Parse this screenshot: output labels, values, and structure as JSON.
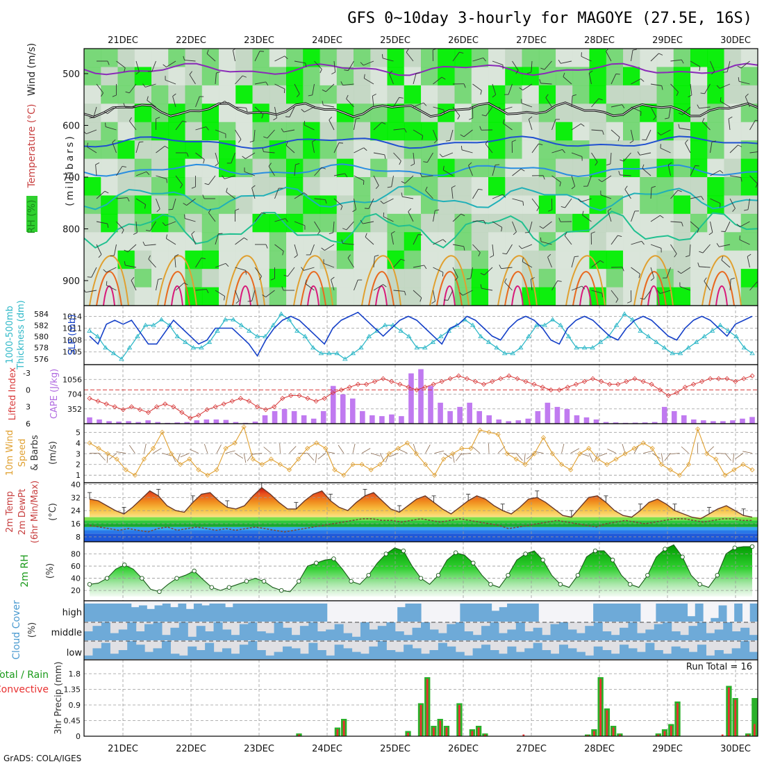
{
  "title": "GFS 0~10day 3-hourly for MAGOYE (27.5E, 16S)",
  "footer": "GrADS: COLA/IGES",
  "dates": [
    "21DEC",
    "22DEC",
    "23DEC",
    "24DEC",
    "25DEC",
    "26DEC",
    "27DEC",
    "28DEC",
    "29DEC",
    "30DEC"
  ],
  "panels": {
    "upper": {
      "y_label_main": "(millibars)",
      "y_label_legend": {
        "rh": "RH (%)",
        "temp": "Temperature (°C)",
        "wind": "Wind (m/s)"
      },
      "y_ticks": [
        500,
        600,
        700,
        800,
        900
      ]
    },
    "slp": {
      "left_label_1": "1000-500mb",
      "left_label_2": "Thickness (dm)",
      "right_label": "SLP (mb)",
      "thickness_ticks": [
        576,
        578,
        580,
        582,
        584
      ],
      "slp_ticks": [
        1005,
        1008,
        1011,
        1014
      ]
    },
    "cape": {
      "left_label": "Lifted Index",
      "right_label": "CAPE (J/kg)",
      "li_ticks": [
        -3,
        0,
        3,
        6
      ],
      "cape_ticks": [
        352,
        704,
        1056
      ]
    },
    "wind": {
      "label_1": "10m Wind",
      "label_2": "Speed",
      "label_3": "& Barbs",
      "unit": "(m/s)",
      "ticks": [
        1,
        2,
        3,
        4,
        5
      ]
    },
    "temp": {
      "label_1": "2m Temp",
      "label_2": "2m DewPt",
      "label_3": "(6hr Min/Max)",
      "unit": "(°C)",
      "ticks": [
        8,
        16,
        24,
        32,
        40
      ]
    },
    "rh": {
      "label": "2m RH",
      "unit": "(%)",
      "ticks": [
        20,
        40,
        60,
        80
      ]
    },
    "cloud": {
      "label": "Cloud Cover",
      "unit": "(%)",
      "levels": [
        "high",
        "middle",
        "low"
      ]
    },
    "precip": {
      "label_1": "Total / Rain",
      "label_2": "Convective",
      "axis_label": "3hr Precip (mm)",
      "ticks": [
        0,
        0.45,
        0.9,
        1.35,
        1.8
      ],
      "run_total": "Run Total = 16"
    }
  },
  "colors": {
    "rh_green": "#2ad12a",
    "rh_bright": "#00ff00",
    "slp_line": "#1540c8",
    "thickness_line": "#2fb8c8",
    "li_line": "#d83a3a",
    "cape_bar": "#c07af0",
    "wind_line": "#e0a030",
    "precip_total": "#2ab02a",
    "precip_conv": "#e83030",
    "cloud_blue": "#6eaad8"
  },
  "chart_data": {
    "type": "line",
    "x_step_hours": 3,
    "slp_mb": [
      1009,
      1007,
      1012,
      1013,
      1012,
      1013,
      1010,
      1007,
      1007,
      1010,
      1013,
      1011,
      1009,
      1007,
      1008,
      1011,
      1011,
      1011,
      1009,
      1007,
      1004,
      1008,
      1011,
      1013,
      1014,
      1013,
      1011,
      1009,
      1007,
      1011,
      1013,
      1014,
      1015,
      1013,
      1011,
      1009,
      1011,
      1013,
      1014,
      1013,
      1011,
      1009,
      1007,
      1011,
      1012,
      1014,
      1013,
      1011,
      1009,
      1008,
      1011,
      1013,
      1014,
      1013,
      1011,
      1008,
      1007,
      1011,
      1013,
      1014,
      1013,
      1011,
      1009,
      1008,
      1011,
      1013,
      1014,
      1013,
      1011,
      1009,
      1008,
      1011,
      1013,
      1014,
      1013,
      1011,
      1009,
      1012,
      1013,
      1014
    ],
    "thickness_dm": [
      581,
      580,
      578,
      577,
      576,
      578,
      580,
      582,
      582,
      583,
      582,
      580,
      579,
      578,
      578,
      579,
      581,
      583,
      583,
      582,
      581,
      580,
      580,
      582,
      584,
      583,
      581,
      580,
      578,
      577,
      577,
      577,
      576,
      577,
      578,
      580,
      581,
      582,
      582,
      581,
      580,
      578,
      578,
      579,
      580,
      581,
      582,
      583,
      582,
      580,
      579,
      578,
      577,
      577,
      578,
      580,
      582,
      582,
      583,
      582,
      580,
      578,
      578,
      578,
      579,
      580,
      582,
      584,
      583,
      581,
      580,
      579,
      578,
      577,
      577,
      578,
      579,
      580,
      581,
      582,
      581,
      580,
      578,
      577
    ],
    "lifted_index": [
      1.5,
      2,
      2.5,
      3,
      3.5,
      3,
      3.5,
      4,
      3,
      2.5,
      3,
      4,
      5,
      4.5,
      3.5,
      3,
      2.5,
      2,
      1.5,
      2,
      3,
      3.5,
      3,
      1.5,
      1,
      1,
      1.5,
      2,
      1.5,
      0.5,
      0,
      -0.5,
      -1,
      -1,
      -1.5,
      -2,
      -1.5,
      -1,
      -0.5,
      0,
      -0.5,
      -1,
      -1.5,
      -2,
      -2.5,
      -2,
      -1.5,
      -1,
      -1.5,
      -2,
      -2.5,
      -2,
      -1.5,
      -1,
      -0.5,
      0,
      0,
      -0.5,
      -1,
      -1.5,
      -2,
      -1.5,
      -1,
      -1,
      -1.5,
      -2,
      -1.5,
      -1,
      0,
      1,
      0.5,
      -0.5,
      -1,
      -1.5,
      -2,
      -2,
      -2,
      -1.5,
      -2,
      -2.5
    ],
    "cape_jkg": [
      150,
      100,
      60,
      50,
      60,
      40,
      80,
      40,
      20,
      30,
      40,
      80,
      100,
      100,
      90,
      40,
      20,
      50,
      200,
      300,
      350,
      300,
      200,
      120,
      300,
      900,
      700,
      600,
      300,
      200,
      180,
      220,
      180,
      1200,
      1300,
      900,
      500,
      300,
      400,
      500,
      300,
      200,
      100,
      60,
      80,
      120,
      300,
      500,
      400,
      350,
      200,
      150,
      100,
      40,
      30,
      20,
      25,
      30,
      40,
      400,
      300,
      200,
      100,
      80,
      60,
      60,
      80,
      120,
      160
    ],
    "wind_ms": [
      4,
      3.5,
      3,
      2.5,
      1.5,
      1,
      2.5,
      3.5,
      5,
      3,
      2,
      2.5,
      1.5,
      1,
      1.5,
      3.5,
      4,
      5.5,
      2.5,
      2,
      2.5,
      2,
      1.5,
      2.5,
      3.5,
      4,
      3.5,
      1.5,
      1,
      2,
      2,
      1.5,
      2,
      3,
      3.5,
      4,
      3,
      2,
      1,
      2.5,
      3,
      3.5,
      3.5,
      5.2,
      5,
      4.8,
      3,
      2.5,
      2,
      3,
      4.5,
      3,
      2,
      1.5,
      3,
      3.5,
      2.5,
      2,
      2.5,
      3,
      3.5,
      4,
      3.5,
      2,
      1.5,
      1,
      2,
      5.3,
      3,
      2.5,
      1,
      1.5,
      2,
      1.5
    ],
    "temp_c": [
      31,
      30,
      27,
      24,
      22,
      26,
      31,
      36,
      33,
      27,
      24,
      23,
      29,
      34,
      35,
      30,
      26,
      25,
      27,
      33,
      38,
      34,
      29,
      25,
      25,
      30,
      34,
      36,
      30,
      26,
      24,
      29,
      33,
      35,
      30,
      25,
      23,
      27,
      31,
      33,
      29,
      25,
      22,
      26,
      30,
      33,
      31,
      27,
      24,
      22,
      26,
      31,
      32,
      29,
      25,
      21,
      20,
      26,
      32,
      33,
      29,
      24,
      21,
      20,
      24,
      29,
      31,
      28,
      24,
      22,
      20,
      19,
      22,
      25,
      27,
      24,
      21,
      20
    ],
    "dewpt_c": [
      15,
      14,
      13,
      12,
      13,
      12,
      11,
      13,
      14,
      12,
      13,
      14,
      13,
      12,
      13,
      12,
      13,
      14,
      13,
      12,
      11,
      12,
      13,
      14,
      15,
      16,
      17,
      18,
      19,
      19,
      18,
      18,
      17,
      18,
      19,
      18,
      17,
      18,
      19,
      18,
      17,
      16,
      15,
      13,
      14,
      15,
      16,
      17,
      18,
      17,
      16,
      15,
      14,
      16,
      17,
      18,
      17,
      16,
      17,
      18,
      19,
      19,
      18,
      17,
      18,
      19,
      19,
      18,
      18
    ],
    "rh_2m_pct": [
      30,
      32,
      40,
      55,
      62,
      55,
      40,
      22,
      18,
      30,
      40,
      45,
      52,
      38,
      25,
      20,
      25,
      30,
      35,
      40,
      35,
      25,
      20,
      18,
      35,
      60,
      65,
      70,
      72,
      55,
      35,
      30,
      45,
      65,
      80,
      90,
      85,
      60,
      40,
      30,
      45,
      70,
      82,
      78,
      65,
      45,
      30,
      25,
      45,
      70,
      80,
      85,
      70,
      45,
      30,
      25,
      45,
      75,
      85,
      85,
      70,
      45,
      30,
      25,
      45,
      75,
      88,
      95,
      75,
      45,
      30,
      25,
      45,
      80,
      90,
      92,
      92
    ],
    "precip_total_mm": [
      0,
      0,
      0,
      0,
      0,
      0,
      0,
      0,
      0,
      0,
      0,
      0,
      0,
      0,
      0,
      0,
      0,
      0,
      0,
      0,
      0,
      0,
      0,
      0,
      0,
      0,
      0,
      0,
      0,
      0,
      0,
      0,
      0,
      0.08,
      0,
      0,
      0,
      0,
      0,
      0.25,
      0.5,
      0,
      0,
      0,
      0,
      0,
      0,
      0,
      0,
      0,
      0.15,
      0,
      0.95,
      1.7,
      0.3,
      0.5,
      0.3,
      0,
      0.95,
      0,
      0.2,
      0.3,
      0.08,
      0,
      0,
      0,
      0,
      0,
      0,
      0,
      0,
      0,
      0,
      0,
      0,
      0,
      0,
      0,
      0.05,
      0.2,
      1.7,
      0.8,
      0.3,
      0.08,
      0,
      0,
      0,
      0,
      0,
      0.08,
      0.2,
      0.35,
      1.0,
      0,
      0,
      0,
      0,
      0,
      0,
      0,
      1.45,
      1.1,
      0,
      0.08,
      1.1
    ],
    "precip_conv_mm": [
      0,
      0,
      0,
      0,
      0,
      0,
      0,
      0,
      0,
      0,
      0,
      0,
      0,
      0,
      0,
      0,
      0,
      0,
      0,
      0,
      0,
      0,
      0,
      0,
      0,
      0,
      0,
      0,
      0,
      0,
      0,
      0,
      0,
      0.05,
      0,
      0,
      0,
      0,
      0,
      0.2,
      0.45,
      0,
      0,
      0,
      0,
      0,
      0,
      0,
      0,
      0,
      0.1,
      0,
      0.9,
      1.65,
      0.25,
      0.45,
      0.25,
      0,
      0.9,
      0,
      0.15,
      0.25,
      0.05,
      0,
      0,
      0,
      0,
      0,
      0.05,
      0,
      0,
      0,
      0,
      0,
      0,
      0,
      0,
      0,
      0.03,
      0.15,
      1.65,
      0.75,
      0.25,
      0.05,
      0,
      0,
      0,
      0,
      0,
      0.05,
      0.15,
      0.3,
      0.95,
      0,
      0,
      0,
      0,
      0,
      0,
      0.05,
      1.4,
      1.05,
      0,
      0.05,
      0.35
    ],
    "cloud_high": [
      1,
      1,
      1,
      1,
      1,
      1,
      0.8,
      0.9,
      0.7,
      0.9,
      1,
      0.8,
      1,
      0.7,
      1,
      0.9,
      1,
      1,
      0.8,
      1,
      1,
      1,
      1,
      1,
      1,
      1,
      1,
      1,
      1,
      1,
      1,
      0,
      0,
      0,
      0,
      0,
      0,
      0,
      0,
      0,
      0.8,
      1,
      1,
      0,
      0,
      0,
      0,
      0,
      1,
      1,
      1,
      1,
      0.6,
      0.8,
      1,
      1,
      1,
      1,
      0,
      0,
      0,
      0,
      0,
      0,
      0,
      1,
      1,
      1,
      1,
      1,
      1,
      0,
      0,
      1,
      1,
      1,
      1,
      0.3,
      1,
      0,
      0.2,
      0.9,
      0,
      1,
      0,
      1
    ],
    "cloud_mid": [
      0.5,
      0.8,
      1,
      0.4,
      0.6,
      1,
      0.5,
      0.9,
      1,
      0.3,
      0.7,
      1,
      0.2,
      0.8,
      0.5,
      1,
      0.6,
      0.3,
      0.9,
      1,
      0.5,
      0.4,
      1,
      0.7,
      0.3,
      0.8,
      1,
      0.5,
      0.6,
      0.9,
      0.4,
      0.2,
      1,
      0.6,
      0.8,
      1,
      0.5,
      0.3,
      0.7,
      1,
      0.6,
      0.4,
      0.9,
      1,
      0.5,
      0.3,
      0.8,
      1,
      0.4,
      0.6,
      1,
      0.5,
      0.7,
      0.3,
      0.9,
      1,
      0.6,
      0.4,
      0.8,
      1,
      0.5,
      0.3,
      0.7,
      1,
      0.4,
      0.6,
      0.9,
      1,
      0.5,
      0.3,
      0.8,
      1,
      0.4,
      0.6,
      1,
      0.5,
      0.7,
      0.3
    ],
    "cloud_low": [
      0.2,
      0.6,
      0.9,
      0.3,
      0.5,
      1,
      0.8,
      0.4,
      0.6,
      1,
      0.3,
      0.2,
      0.7,
      0.5,
      0.9,
      0.4,
      0.6,
      0.3,
      0.8,
      1,
      0.5,
      0.2,
      0.4,
      0.7,
      0.6,
      0.3,
      0.9,
      0.5,
      0.2,
      0.8,
      0.6,
      0.4,
      0.3,
      0.7,
      1,
      0.5,
      0.4,
      0.8,
      0.6,
      0.3,
      0.5,
      0.9,
      0.7,
      0.4,
      0.2,
      0.6,
      0.8,
      0.5,
      0.3,
      0.7,
      0.4,
      0.6,
      0.9,
      0.5,
      0.3,
      0.8,
      0.6,
      0.4,
      0.2,
      0.7,
      0.5,
      0.3,
      0.8,
      0.6,
      0.4,
      0.9,
      0.5,
      0.3,
      0.7,
      0.6,
      0.4,
      0.8,
      0.2,
      0.5,
      0.3,
      0.6,
      1,
      0.4
    ]
  }
}
